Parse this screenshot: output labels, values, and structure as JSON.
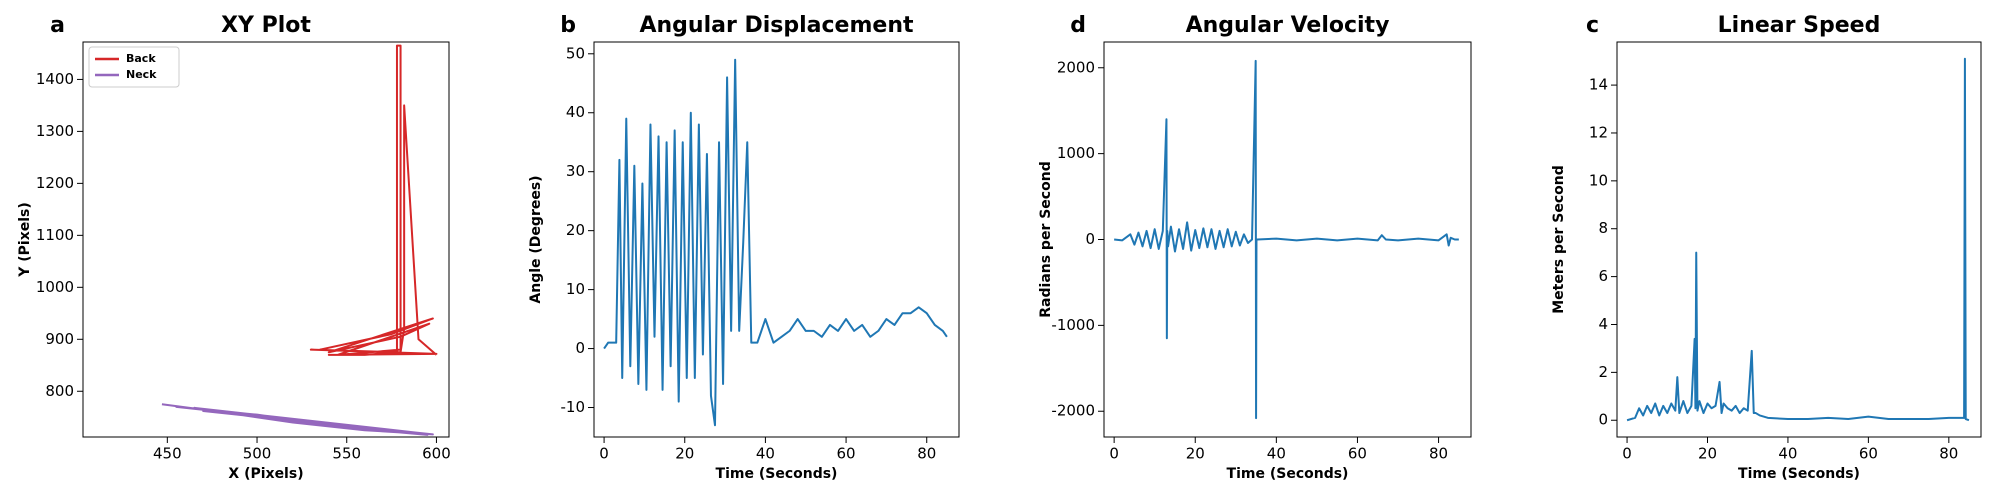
{
  "chart_data": [
    {
      "type": "line",
      "panel_label": "a",
      "title": "XY Plot",
      "x_label": "X (Pixels)",
      "y_label": "Y (Pixels)",
      "xlim": [
        403,
        607
      ],
      "xticks": [
        450,
        500,
        550,
        600
      ],
      "ylim": [
        712,
        1472
      ],
      "yticks": [
        800,
        900,
        1000,
        1100,
        1200,
        1300,
        1400
      ],
      "legend": "upper left",
      "series": [
        {
          "name": "Back",
          "color": "#d62728",
          "x": [
            535,
            575,
            598,
            540,
            580,
            596,
            545,
            580,
            580,
            578,
            578,
            560,
            540,
            600,
            530,
            580,
            582,
            582,
            590,
            600
          ],
          "values": [
            880,
            910,
            940,
            875,
            905,
            930,
            870,
            880,
            1465,
            1465,
            875,
            870,
            870,
            872,
            880,
            875,
            920,
            1350,
            900,
            870
          ]
        },
        {
          "name": "Neck",
          "color": "#9467bd",
          "x": [
            447,
            480,
            520,
            560,
            598,
            455,
            500,
            540,
            590,
            465,
            510,
            550,
            595,
            470,
            520,
            580,
            598
          ],
          "values": [
            775,
            760,
            740,
            725,
            717,
            770,
            755,
            735,
            720,
            768,
            750,
            730,
            716,
            762,
            745,
            722,
            717
          ]
        }
      ]
    },
    {
      "type": "line",
      "panel_label": "b",
      "title": "Angular Displacement",
      "x_label": "Time (Seconds)",
      "y_label": "Angle (Degrees)",
      "xlim": [
        -2.5,
        88
      ],
      "xticks": [
        0,
        20,
        40,
        60,
        80
      ],
      "ylim": [
        -15,
        52
      ],
      "yticks": [
        -10,
        0,
        10,
        20,
        30,
        40,
        50
      ],
      "series": [
        {
          "color": "#1f77b4",
          "x": [
            0,
            1,
            2,
            3,
            3.8,
            4.5,
            5.5,
            6.5,
            7.5,
            8.5,
            9.5,
            10.5,
            11.5,
            12.5,
            13.5,
            14.5,
            15.5,
            16.5,
            17.5,
            18.5,
            19.5,
            20.5,
            21.5,
            22.5,
            23.5,
            24.5,
            25.5,
            26.5,
            27.5,
            28.5,
            29.5,
            30.5,
            31.5,
            32.5,
            33.5,
            34.5,
            35.5,
            36.5,
            38,
            40,
            42,
            44,
            46,
            48,
            50,
            52,
            54,
            56,
            58,
            60,
            62,
            64,
            66,
            68,
            70,
            72,
            74,
            76,
            78,
            80,
            82,
            84,
            85
          ],
          "values": [
            0,
            1,
            1,
            1,
            32,
            -5,
            39,
            -3,
            31,
            -6,
            28,
            -7,
            38,
            2,
            36,
            -7,
            35,
            -3,
            37,
            -9,
            35,
            -5,
            40,
            -5,
            38,
            -1,
            33,
            -8,
            -13,
            35,
            -6,
            46,
            3,
            49,
            3,
            18,
            35,
            1,
            1,
            5,
            1,
            2,
            3,
            5,
            3,
            3,
            2,
            4,
            3,
            5,
            3,
            4,
            2,
            3,
            5,
            4,
            6,
            6,
            7,
            6,
            4,
            3,
            2
          ]
        }
      ]
    },
    {
      "type": "line",
      "panel_label": "d",
      "title": "Angular Velocity",
      "x_label": "Time (Seconds)",
      "y_label": "Radians per Second",
      "xlim": [
        -2.5,
        88
      ],
      "xticks": [
        0,
        20,
        40,
        60,
        80
      ],
      "ylim": [
        -2300,
        2300
      ],
      "yticks": [
        -2000,
        -1000,
        0,
        1000,
        2000
      ],
      "series": [
        {
          "color": "#1f77b4",
          "x": [
            0,
            2,
            4,
            5,
            6,
            7,
            8,
            9,
            10,
            11,
            12,
            12.9,
            13,
            13.1,
            13.3,
            14,
            15,
            16,
            17,
            18,
            19,
            20,
            21,
            22,
            23,
            24,
            25,
            26,
            27,
            28,
            29,
            30,
            31,
            32,
            33,
            34,
            34.9,
            35,
            35.1,
            35.3,
            40,
            45,
            50,
            55,
            60,
            65,
            66,
            67,
            70,
            75,
            80,
            82,
            82.5,
            83,
            84,
            85
          ],
          "values": [
            0,
            -10,
            60,
            -60,
            80,
            -80,
            100,
            -100,
            120,
            -110,
            100,
            1400,
            -1150,
            100,
            -80,
            150,
            -140,
            120,
            -110,
            200,
            -130,
            110,
            -100,
            130,
            -90,
            120,
            -110,
            100,
            -90,
            120,
            -80,
            90,
            -70,
            60,
            -40,
            0,
            2080,
            -2080,
            0,
            0,
            10,
            -10,
            10,
            -10,
            10,
            -10,
            50,
            0,
            -10,
            10,
            -10,
            60,
            -70,
            20,
            0,
            0
          ]
        }
      ]
    },
    {
      "type": "line",
      "panel_label": "c",
      "title": "Linear Speed",
      "x_label": "Time (Seconds)",
      "y_label": "Meters per Second",
      "xlim": [
        -2.5,
        88
      ],
      "xticks": [
        0,
        20,
        40,
        60,
        80
      ],
      "ylim": [
        -0.7,
        15.8
      ],
      "yticks": [
        0,
        2,
        4,
        6,
        8,
        10,
        12,
        14
      ],
      "series": [
        {
          "color": "#1f77b4",
          "x": [
            0,
            2,
            3,
            4,
            5,
            6,
            7,
            8,
            9,
            10,
            11,
            12,
            12.5,
            13,
            14,
            15,
            16,
            16.8,
            17,
            17.2,
            17.5,
            18,
            19,
            20,
            21,
            22,
            23,
            23.5,
            24,
            25,
            26,
            27,
            28,
            29,
            30,
            31,
            31.5,
            32,
            33,
            35,
            40,
            45,
            50,
            55,
            60,
            65,
            70,
            75,
            80,
            83.8,
            84,
            84.2,
            85
          ],
          "values": [
            0,
            0.1,
            0.5,
            0.2,
            0.6,
            0.3,
            0.7,
            0.2,
            0.6,
            0.3,
            0.7,
            0.4,
            1.8,
            0.3,
            0.8,
            0.3,
            0.6,
            3.4,
            0.5,
            7,
            0.4,
            0.8,
            0.3,
            0.7,
            0.5,
            0.6,
            1.6,
            0.3,
            0.7,
            0.5,
            0.4,
            0.6,
            0.3,
            0.5,
            0.4,
            2.9,
            0.3,
            0.3,
            0.2,
            0.1,
            0.05,
            0.05,
            0.1,
            0.05,
            0.15,
            0.05,
            0.05,
            0.05,
            0.1,
            0.1,
            15.1,
            0.05,
            0
          ]
        }
      ]
    }
  ]
}
